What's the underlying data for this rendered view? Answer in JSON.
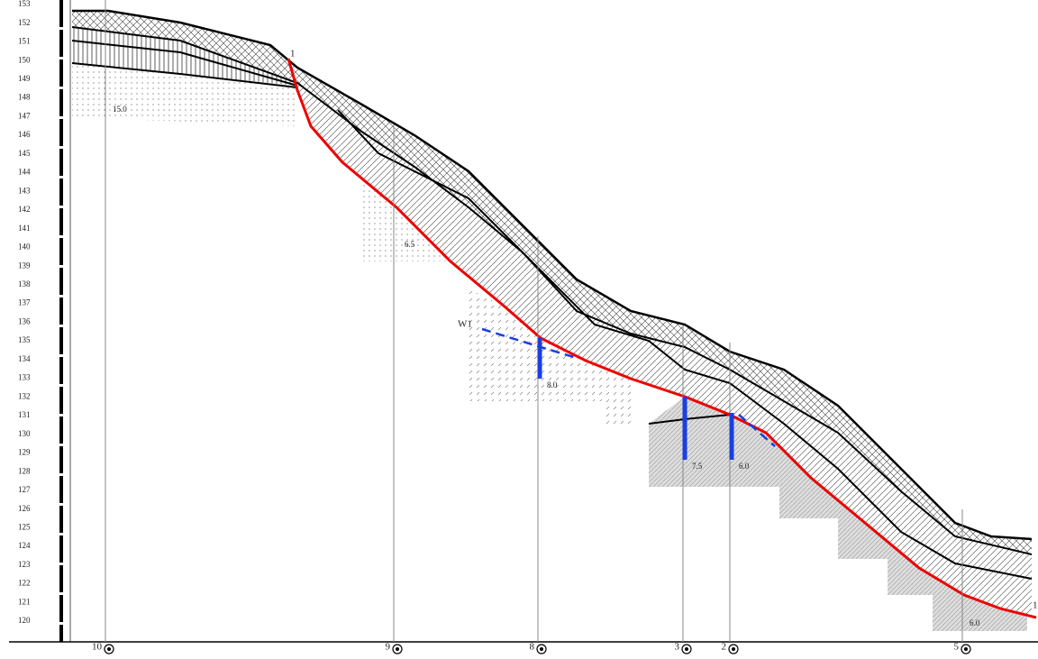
{
  "axis": {
    "labels": [
      153,
      152,
      151,
      150,
      149,
      148,
      147,
      146,
      145,
      144,
      143,
      142,
      141,
      140,
      139,
      138,
      137,
      136,
      135,
      134,
      133,
      132,
      131,
      130,
      129,
      128,
      127,
      126,
      125,
      124,
      123,
      122,
      121,
      120
    ]
  },
  "boreholes": [
    {
      "label": "10",
      "depth": "15.0"
    },
    {
      "label": "9",
      "depth": "6.5"
    },
    {
      "label": "8",
      "depth": "8.0"
    },
    {
      "label": "3",
      "depth": "7.5"
    },
    {
      "label": "2",
      "depth": "6.0"
    },
    {
      "label": "5",
      "depth": "6.0"
    }
  ],
  "annotations": {
    "water_line": "W1",
    "section_start": "1",
    "section_end": "1"
  }
}
